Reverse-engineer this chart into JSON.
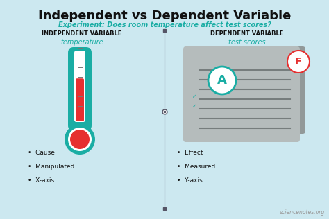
{
  "bg_color": "#cce8f0",
  "title": "Independent vs Dependent Variable",
  "title_fontsize": 13,
  "title_color": "#111111",
  "subtitle": "Experiment: Does room temperature affect test scores?",
  "subtitle_color": "#1aada4",
  "subtitle_fontsize": 7,
  "left_header": "INDEPENDENT VARIABLE",
  "right_header": "DEPENDENT VARIABLE",
  "header_color": "#111111",
  "header_fontsize": 6,
  "left_subheader": "temperature",
  "right_subheader": "test scores",
  "subheader_color": "#1aada4",
  "subheader_fontsize": 7,
  "left_bullets": [
    "Cause",
    "Manipulated",
    "X-axis"
  ],
  "right_bullets": [
    "Effect",
    "Measured",
    "Y-axis"
  ],
  "bullet_fontsize": 6.5,
  "bullet_color": "#111111",
  "divider_color": "#555566",
  "watermark": "sciencenotes.org",
  "watermark_color": "#999999",
  "watermark_fontsize": 5.5,
  "thermo_teal": "#1aada4",
  "thermo_red": "#e63030",
  "doc_gray": "#b5bcbc",
  "doc_dark": "#929999",
  "grade_a_color": "#1aada4",
  "grade_f_color": "#e63030"
}
